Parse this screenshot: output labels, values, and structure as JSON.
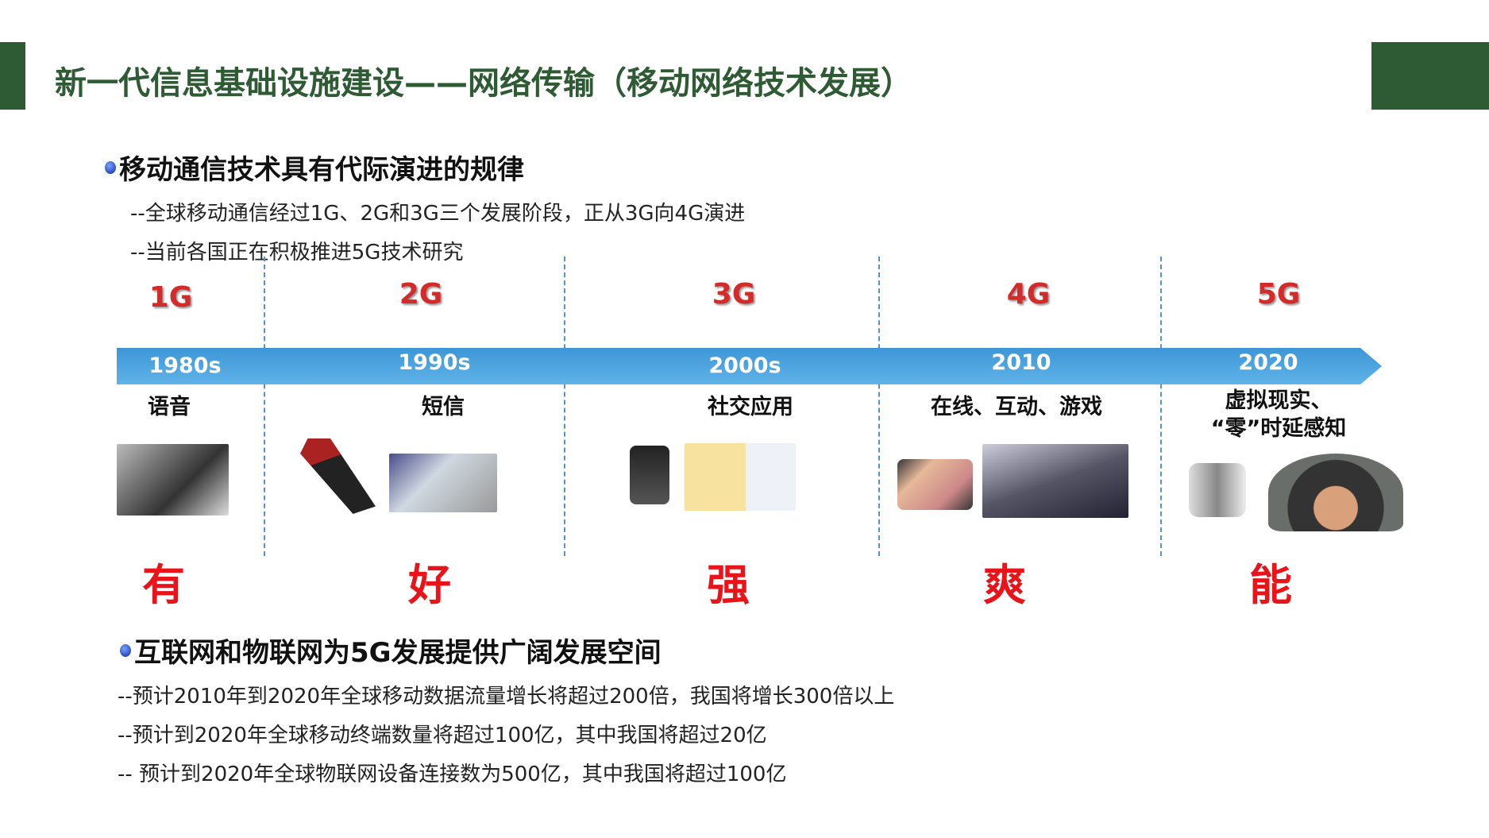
{
  "title": "新一代信息基础设施建设——网络传输（移动网络技术发展）",
  "section1": {
    "heading": "移动通信技术具有代际演进的规律",
    "lines": [
      "--全球移动通信经过1G、2G和3G三个发展阶段，正从3G向4G演进",
      "--当前各国正在积极推进5G技术研究"
    ]
  },
  "timeline": [
    {
      "gen": "1G",
      "year": "1980s",
      "feature": "语音",
      "feature2": "",
      "word": "有"
    },
    {
      "gen": "2G",
      "year": "1990s",
      "feature": "短信",
      "feature2": "",
      "word": "好"
    },
    {
      "gen": "3G",
      "year": "2000s",
      "feature": "社交应用",
      "feature2": "",
      "word": "强"
    },
    {
      "gen": "4G",
      "year": "2010",
      "feature": "在线、互动、游戏",
      "feature2": "",
      "word": "爽"
    },
    {
      "gen": "5G",
      "year": "2020",
      "feature": "虚拟现实、",
      "feature2": "“零”时延感知",
      "word": "能"
    }
  ],
  "section2": {
    "heading": "互联网和物联网为5G发展提供广阔发展空间",
    "lines": [
      "--预计2010年到2020年全球移动数据流量增长将超过200倍，我国将增长300倍以上",
      "--预计到2020年全球移动终端数量将超过100亿，其中我国将超过20亿",
      "-- 预计到2020年全球物联网设备连接数为500亿，其中我国将超过100亿"
    ]
  },
  "colors": {
    "brand_green": "#2e5b34",
    "timeline_blue": "#4aa3e0",
    "accent_red": "#e8141a"
  }
}
